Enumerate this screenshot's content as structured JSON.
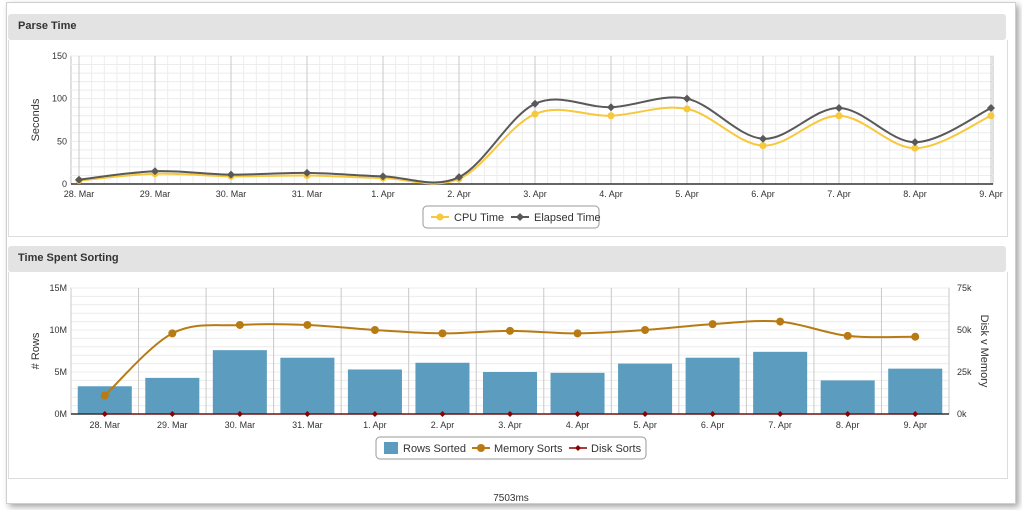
{
  "panels": {
    "parse_title": "Parse Time",
    "sort_title": "Time Spent Sorting"
  },
  "footer": {
    "timing": "7503ms"
  },
  "colors": {
    "cpu": "#f8c83c",
    "elapsed": "#595959",
    "rows": "#5b9cbf",
    "memory": "#b87b14",
    "disk": "#8b0000"
  },
  "chart_data": [
    {
      "type": "line",
      "title": "Parse Time",
      "categories": [
        "28. Mar",
        "29. Mar",
        "30. Mar",
        "31. Mar",
        "1. Apr",
        "2. Apr",
        "3. Apr",
        "4. Apr",
        "5. Apr",
        "6. Apr",
        "7. Apr",
        "8. Apr",
        "9. Apr"
      ],
      "ylabel": "Seconds",
      "ylim": [
        0,
        150
      ],
      "yticks": [
        0,
        50,
        100,
        150
      ],
      "grid": true,
      "legend": "bottom-center",
      "series": [
        {
          "name": "CPU Time",
          "values": [
            4,
            12,
            9,
            10,
            7,
            6,
            82,
            80,
            88,
            45,
            80,
            42,
            80
          ]
        },
        {
          "name": "Elapsed Time",
          "values": [
            5,
            15,
            11,
            13,
            9,
            8,
            94,
            90,
            100,
            53,
            89,
            49,
            89
          ]
        }
      ]
    },
    {
      "type": "bar",
      "title": "Time Spent Sorting",
      "categories": [
        "28. Mar",
        "29. Mar",
        "30. Mar",
        "31. Mar",
        "1. Apr",
        "2. Apr",
        "3. Apr",
        "4. Apr",
        "5. Apr",
        "6. Apr",
        "7. Apr",
        "8. Apr",
        "9. Apr"
      ],
      "ylabel": "# Rows",
      "ylim": [
        0,
        15000000
      ],
      "yticks": [
        "0M",
        "5M",
        "10M",
        "15M"
      ],
      "y2label": "Disk v Memory",
      "y2lim": [
        0,
        75000
      ],
      "y2ticks": [
        "0k",
        "25k",
        "50k",
        "75k"
      ],
      "grid": true,
      "legend": "bottom-center",
      "series": [
        {
          "name": "Rows Sorted",
          "axis": "left",
          "values": [
            3300000,
            4300000,
            7600000,
            6700000,
            5300000,
            6100000,
            5000000,
            4900000,
            6000000,
            6700000,
            7400000,
            4000000,
            5400000
          ]
        },
        {
          "name": "Memory Sorts",
          "axis": "right",
          "values": [
            11000,
            48000,
            53000,
            53000,
            50000,
            48000,
            49500,
            48000,
            50000,
            53500,
            55000,
            46500,
            46000
          ]
        },
        {
          "name": "Disk Sorts",
          "axis": "right",
          "values": [
            0,
            0,
            0,
            0,
            0,
            0,
            0,
            0,
            0,
            0,
            0,
            0,
            0
          ]
        }
      ]
    }
  ]
}
